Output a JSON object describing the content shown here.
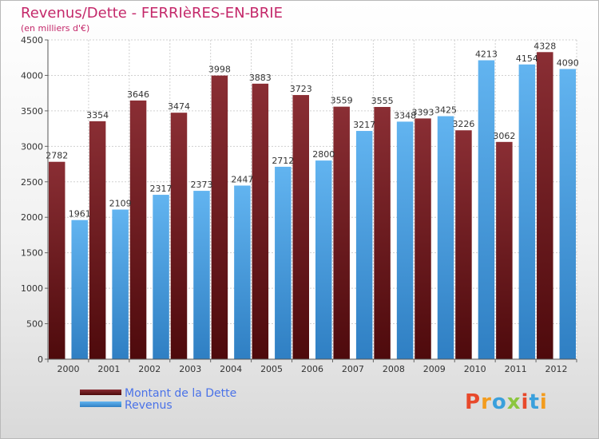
{
  "header": {
    "title": "Revenus/Dette - FERRIèRES-EN-BRIE",
    "subtitle": "(en milliers d'€)"
  },
  "legend": {
    "debt_label": "Montant de la Dette",
    "revenue_label": "Revenus"
  },
  "logo": {
    "text": "Proxiti",
    "colors": [
      "#e8492b",
      "#f39c1e",
      "#3aa0dc",
      "#8cc63f",
      "#e8492b",
      "#3aa0dc",
      "#f39c1e"
    ]
  },
  "colors": {
    "debt_top": "#8a2e34",
    "debt_bottom": "#4e0a0c",
    "revenue_top": "#62b4f0",
    "revenue_bottom": "#2f7fc3",
    "title": "#c4286a"
  },
  "chart_data": {
    "type": "bar",
    "categories": [
      "2000",
      "2001",
      "2002",
      "2003",
      "2004",
      "2005",
      "2006",
      "2007",
      "2008",
      "2009",
      "2010",
      "2011",
      "2012"
    ],
    "series": [
      {
        "name": "Montant de la Dette",
        "values": [
          2782,
          3354,
          3646,
          3474,
          3998,
          3883,
          3723,
          3559,
          3555,
          3393,
          3226,
          3062,
          4328
        ]
      },
      {
        "name": "Revenus",
        "values": [
          1961,
          2109,
          2317,
          2373,
          2447,
          2712,
          2800,
          3217,
          3348,
          3425,
          4213,
          4154,
          4090
        ]
      }
    ],
    "yticks": [
      0,
      500,
      1000,
      1500,
      2000,
      2500,
      3000,
      3500,
      4000,
      4500
    ],
    "ylim": [
      0,
      4500
    ],
    "grid": true,
    "legend": "bottom-left"
  }
}
